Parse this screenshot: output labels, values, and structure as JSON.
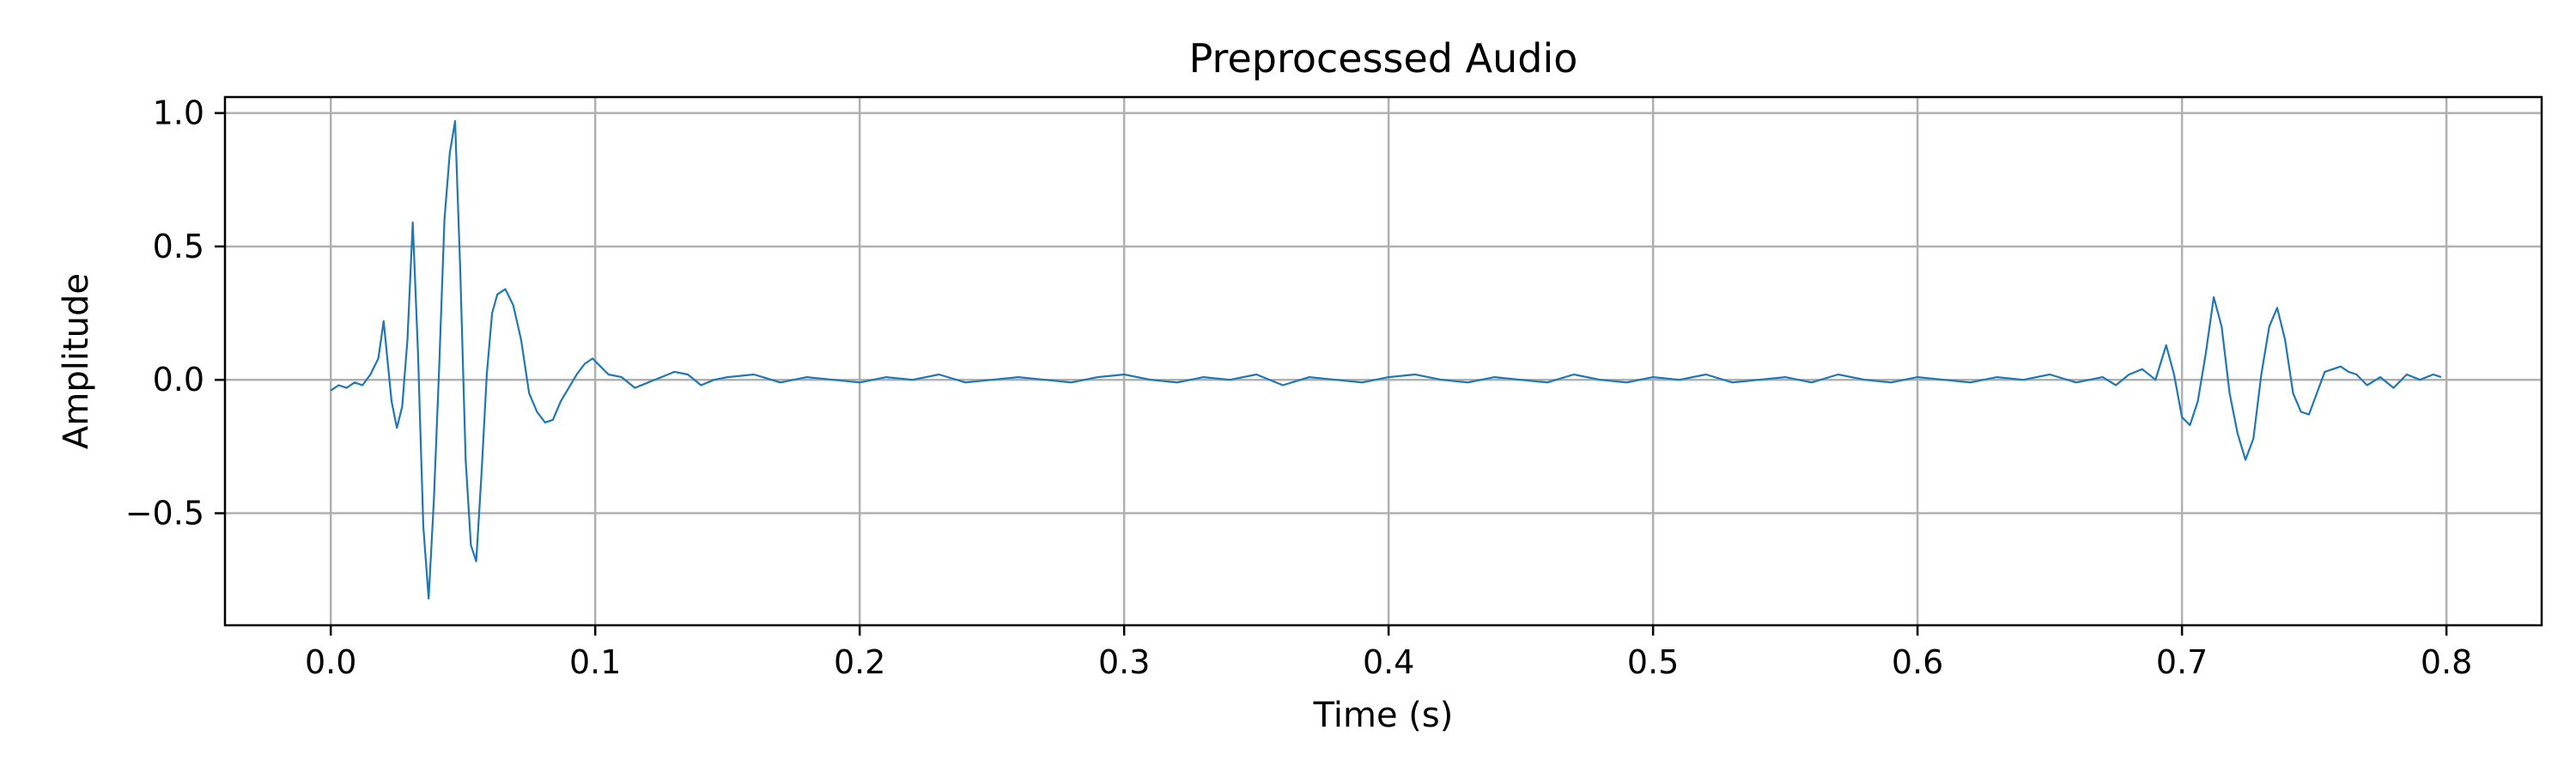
{
  "chart_data": {
    "type": "line",
    "title": "Preprocessed Audio",
    "xlabel": "Time (s)",
    "ylabel": "Amplitude",
    "xlim": [
      -0.04,
      0.836
    ],
    "ylim": [
      -0.92,
      1.06
    ],
    "xticks": [
      0.0,
      0.1,
      0.2,
      0.3,
      0.4,
      0.5,
      0.6,
      0.7,
      0.8
    ],
    "xtick_labels": [
      "0.0",
      "0.1",
      "0.2",
      "0.3",
      "0.4",
      "0.5",
      "0.6",
      "0.7",
      "0.8"
    ],
    "yticks": [
      -0.5,
      0.0,
      0.5,
      1.0
    ],
    "ytick_labels": [
      "−0.5",
      "0.0",
      "0.5",
      "1.0"
    ],
    "grid": true,
    "line_color": "#1f77b4",
    "series": [
      {
        "x": [
          0.0,
          0.003,
          0.006,
          0.009,
          0.012,
          0.015,
          0.018,
          0.02,
          0.023,
          0.025,
          0.027,
          0.029,
          0.031,
          0.033,
          0.035,
          0.037,
          0.039,
          0.041,
          0.043,
          0.045,
          0.047,
          0.049,
          0.051,
          0.053,
          0.055,
          0.057,
          0.059,
          0.061,
          0.063,
          0.066,
          0.069,
          0.072,
          0.075,
          0.078,
          0.081,
          0.084,
          0.087,
          0.09,
          0.093,
          0.096,
          0.099,
          0.102,
          0.105,
          0.11,
          0.115,
          0.12,
          0.125,
          0.13,
          0.135,
          0.14,
          0.145,
          0.15,
          0.16,
          0.17,
          0.18,
          0.19,
          0.2,
          0.21,
          0.22,
          0.23,
          0.24,
          0.25,
          0.26,
          0.27,
          0.28,
          0.29,
          0.3,
          0.31,
          0.32,
          0.33,
          0.34,
          0.35,
          0.36,
          0.37,
          0.38,
          0.39,
          0.4,
          0.41,
          0.42,
          0.43,
          0.44,
          0.45,
          0.46,
          0.47,
          0.48,
          0.49,
          0.5,
          0.51,
          0.52,
          0.53,
          0.54,
          0.55,
          0.56,
          0.57,
          0.58,
          0.59,
          0.6,
          0.61,
          0.62,
          0.63,
          0.64,
          0.65,
          0.66,
          0.67,
          0.675,
          0.68,
          0.685,
          0.69,
          0.694,
          0.697,
          0.7,
          0.703,
          0.706,
          0.709,
          0.712,
          0.715,
          0.718,
          0.721,
          0.724,
          0.727,
          0.73,
          0.733,
          0.736,
          0.739,
          0.742,
          0.745,
          0.748,
          0.751,
          0.754,
          0.757,
          0.76,
          0.763,
          0.766,
          0.77,
          0.775,
          0.78,
          0.785,
          0.79,
          0.795,
          0.798
        ],
        "y": [
          -0.04,
          -0.02,
          -0.03,
          -0.01,
          -0.02,
          0.02,
          0.08,
          0.22,
          -0.08,
          -0.18,
          -0.1,
          0.15,
          0.59,
          0.1,
          -0.55,
          -0.82,
          -0.45,
          0.05,
          0.6,
          0.85,
          0.97,
          0.4,
          -0.3,
          -0.62,
          -0.68,
          -0.35,
          0.02,
          0.25,
          0.32,
          0.34,
          0.28,
          0.15,
          -0.05,
          -0.12,
          -0.16,
          -0.15,
          -0.08,
          -0.03,
          0.02,
          0.06,
          0.08,
          0.05,
          0.02,
          0.01,
          -0.03,
          -0.01,
          0.01,
          0.03,
          0.02,
          -0.02,
          0.0,
          0.01,
          0.02,
          -0.01,
          0.01,
          0.0,
          -0.01,
          0.01,
          0.0,
          0.02,
          -0.01,
          0.0,
          0.01,
          0.0,
          -0.01,
          0.01,
          0.02,
          0.0,
          -0.01,
          0.01,
          0.0,
          0.02,
          -0.02,
          0.01,
          0.0,
          -0.01,
          0.01,
          0.02,
          0.0,
          -0.01,
          0.01,
          0.0,
          -0.01,
          0.02,
          0.0,
          -0.01,
          0.01,
          0.0,
          0.02,
          -0.01,
          0.0,
          0.01,
          -0.01,
          0.02,
          0.0,
          -0.01,
          0.01,
          0.0,
          -0.01,
          0.01,
          0.0,
          0.02,
          -0.01,
          0.01,
          -0.02,
          0.02,
          0.04,
          0.0,
          0.13,
          0.02,
          -0.14,
          -0.17,
          -0.08,
          0.1,
          0.31,
          0.2,
          -0.05,
          -0.2,
          -0.3,
          -0.22,
          0.02,
          0.2,
          0.27,
          0.15,
          -0.05,
          -0.12,
          -0.13,
          -0.05,
          0.03,
          0.04,
          0.05,
          0.03,
          0.02,
          -0.02,
          0.01,
          -0.03,
          0.02,
          0.0,
          0.02,
          0.01
        ]
      }
    ]
  }
}
